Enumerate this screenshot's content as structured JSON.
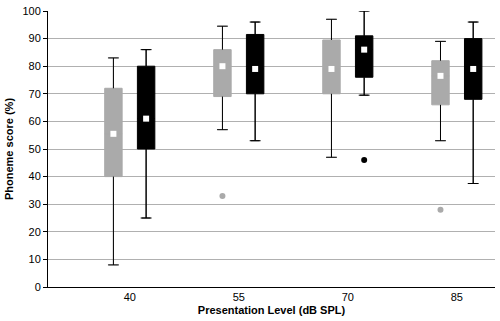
{
  "chart_data": {
    "type": "box",
    "x_label": "Presentation Level (dB SPL)",
    "y_label": "Phoneme score (%)",
    "categories": [
      "40",
      "55",
      "70",
      "85"
    ],
    "ylim": [
      0,
      100
    ],
    "yticks": [
      0,
      10,
      20,
      30,
      40,
      50,
      60,
      70,
      80,
      90,
      100
    ],
    "grid": true,
    "series": [
      {
        "color": "#aaaaaa",
        "lowerfence": [
          8,
          57,
          47,
          53
        ],
        "q1": [
          40,
          69,
          70,
          66
        ],
        "median": [
          55.5,
          80,
          79,
          76.5
        ],
        "q3": [
          72,
          86,
          89.5,
          82
        ],
        "upperfence": [
          83,
          94.5,
          97,
          89
        ],
        "outliers": [
          [],
          [
            33
          ],
          [],
          [
            28
          ]
        ]
      },
      {
        "color": "#000000",
        "lowerfence": [
          25,
          53,
          69.5,
          37.5
        ],
        "q1": [
          50,
          70,
          76,
          68
        ],
        "median": [
          61,
          79,
          86,
          79
        ],
        "q3": [
          80,
          91.5,
          91,
          90
        ],
        "upperfence": [
          86,
          96,
          100,
          96
        ],
        "outliers": [
          [],
          [],
          [
            46
          ],
          []
        ]
      }
    ]
  }
}
